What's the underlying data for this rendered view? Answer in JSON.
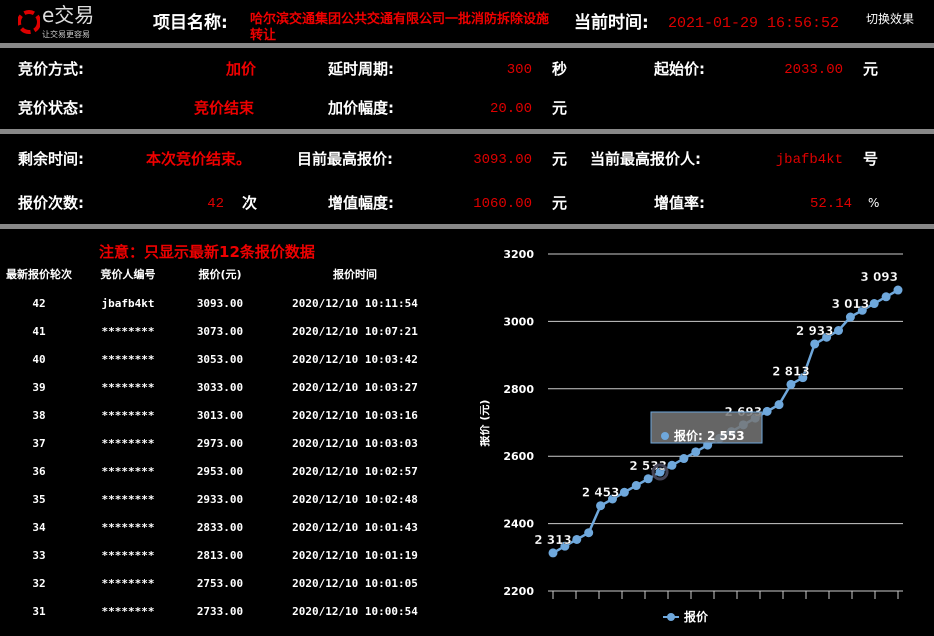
{
  "header": {
    "logo_text": "e交易",
    "logo_slogan": "让交易更容易",
    "project_label": "项目名称:",
    "project_name": "哈尔滨交通集团公共交通有限公司一批消防拆除设施转让",
    "time_label": "当前时间:",
    "time_value": "2021-01-29 16:56:52",
    "switch_label": "切换效果"
  },
  "info1": {
    "mode_label": "竞价方式:",
    "mode_value": "加价",
    "delay_label": "延时周期:",
    "delay_value": "300",
    "delay_unit": "秒",
    "start_label": "起始价:",
    "start_value": "2033.00",
    "start_unit": "元",
    "status_label": "竞价状态:",
    "status_value": "竞价结束",
    "inc_label": "加价幅度:",
    "inc_value": "20.00",
    "inc_unit": "元"
  },
  "info2": {
    "remain_label": "剩余时间:",
    "remain_value": "本次竞价结束。",
    "high_label": "目前最高报价:",
    "high_value": "3093.00",
    "high_unit": "元",
    "bidder_label": "当前最高报价人:",
    "bidder_value": "jbafb4kt",
    "bidder_unit": "号",
    "count_label": "报价次数:",
    "count_value": "42",
    "count_unit": "次",
    "gain_label": "增值幅度:",
    "gain_value": "1060.00",
    "gain_unit": "元",
    "rate_label": "增值率:",
    "rate_value": "52.14",
    "rate_unit": "%"
  },
  "table": {
    "notice": "注意：只显示最新12条报价数据",
    "headers": [
      "最新报价轮次",
      "竞价人编号",
      "报价(元)",
      "报价时间"
    ],
    "rows": [
      [
        "42",
        "jbafb4kt",
        "3093.00",
        "2020/12/10 10:11:54"
      ],
      [
        "41",
        "********",
        "3073.00",
        "2020/12/10 10:07:21"
      ],
      [
        "40",
        "********",
        "3053.00",
        "2020/12/10 10:03:42"
      ],
      [
        "39",
        "********",
        "3033.00",
        "2020/12/10 10:03:27"
      ],
      [
        "38",
        "********",
        "3013.00",
        "2020/12/10 10:03:16"
      ],
      [
        "37",
        "********",
        "2973.00",
        "2020/12/10 10:03:03"
      ],
      [
        "36",
        "********",
        "2953.00",
        "2020/12/10 10:02:57"
      ],
      [
        "35",
        "********",
        "2933.00",
        "2020/12/10 10:02:48"
      ],
      [
        "34",
        "********",
        "2833.00",
        "2020/12/10 10:01:43"
      ],
      [
        "33",
        "********",
        "2813.00",
        "2020/12/10 10:01:19"
      ],
      [
        "32",
        "********",
        "2753.00",
        "2020/12/10 10:01:05"
      ],
      [
        "31",
        "********",
        "2733.00",
        "2020/12/10 10:00:54"
      ]
    ]
  },
  "chart_data": {
    "type": "line",
    "ylabel": "报价 (元)",
    "ylim": [
      2200,
      3200
    ],
    "yticks": [
      2200,
      2400,
      2600,
      2800,
      3000,
      3200
    ],
    "grid": true,
    "legend": "bottom",
    "series": [
      {
        "name": "报价",
        "color": "#6fa8dc",
        "values": [
          2313,
          2333,
          2353,
          2373,
          2453,
          2473,
          2493,
          2513,
          2533,
          2553,
          2573,
          2593,
          2613,
          2633,
          2653,
          2673,
          2693,
          2713,
          2733,
          2753,
          2813,
          2833,
          2933,
          2953,
          2973,
          3013,
          3033,
          3053,
          3073,
          3093
        ]
      }
    ],
    "data_labels": [
      {
        "index": 0,
        "text": "2 313"
      },
      {
        "index": 4,
        "text": "2 453"
      },
      {
        "index": 8,
        "text": "2 533"
      },
      {
        "index": 16,
        "text": "2 693"
      },
      {
        "index": 20,
        "text": "2 813"
      },
      {
        "index": 22,
        "text": "2 933"
      },
      {
        "index": 25,
        "text": "3 013"
      },
      {
        "index": 29,
        "text": "3 093"
      }
    ],
    "tooltip": {
      "index": 9,
      "text": "报价: 2 553"
    }
  }
}
